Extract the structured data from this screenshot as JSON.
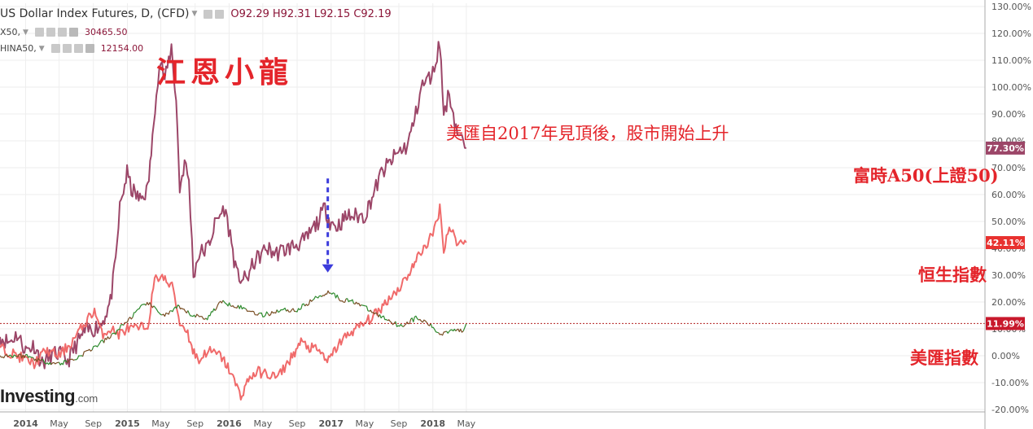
{
  "legend": {
    "main_title": "US Dollar Index Futures, D, (CFD)",
    "ohlc": [
      "O92.29",
      "H92.31",
      "L92.15",
      "C92.19"
    ],
    "s2_label": "X50,",
    "s2_value": "30465.50",
    "s3_label": "HINA50,",
    "s3_value": "12154.00"
  },
  "watermark": "江恩小龍",
  "annotations": {
    "top": "美匯自2017年見頂後，股市開始上升",
    "a50": "富時A50(上證50)",
    "hsi": "恒生指數",
    "usd": "美匯指數"
  },
  "logo": {
    "brand": "Investing",
    "suffix": ".com"
  },
  "colors": {
    "a50": "#9c4668",
    "hsi": "#f06a6a",
    "usd_up": "#2e8b2e",
    "usd_down": "#7a4f25",
    "annotation": "#e4252b",
    "arrow": "#3c3cdc",
    "ref_line": "#b22222"
  },
  "chart_data": {
    "type": "line",
    "x_tick_labels": [
      "2014",
      "May",
      "Sep",
      "2015",
      "May",
      "Sep",
      "2016",
      "May",
      "Sep",
      "2017",
      "May",
      "Sep",
      "2018",
      "May"
    ],
    "y_axis": {
      "ticks": [
        -20,
        -10,
        0,
        10,
        20,
        30,
        40,
        50,
        60,
        70,
        80,
        90,
        100,
        110,
        120,
        130
      ],
      "format": "percent",
      "range": [
        -22,
        132
      ]
    },
    "last_value_badges": [
      "77.30%",
      "42.11%",
      "11.99%"
    ],
    "series": [
      {
        "key": "a50",
        "points": [
          [
            "2013-10-01",
            7
          ],
          [
            "2013-11-01",
            5
          ],
          [
            "2013-12-01",
            8
          ],
          [
            "2014-01-01",
            2
          ],
          [
            "2014-02-01",
            4
          ],
          [
            "2014-03-01",
            -3
          ],
          [
            "2014-04-01",
            0
          ],
          [
            "2014-05-01",
            1
          ],
          [
            "2014-06-01",
            -2
          ],
          [
            "2014-07-01",
            4
          ],
          [
            "2014-08-01",
            9
          ],
          [
            "2014-09-01",
            10
          ],
          [
            "2014-10-01",
            12
          ],
          [
            "2014-11-01",
            20
          ],
          [
            "2014-11-20",
            35
          ],
          [
            "2014-12-05",
            55
          ],
          [
            "2014-12-31",
            68
          ],
          [
            "2015-01-15",
            62
          ],
          [
            "2015-02-15",
            58
          ],
          [
            "2015-03-15",
            62
          ],
          [
            "2015-04-01",
            80
          ],
          [
            "2015-04-15",
            100
          ],
          [
            "2015-05-01",
            110
          ],
          [
            "2015-05-15",
            102
          ],
          [
            "2015-06-08",
            115
          ],
          [
            "2015-06-25",
            95
          ],
          [
            "2015-07-08",
            62
          ],
          [
            "2015-07-25",
            72
          ],
          [
            "2015-08-10",
            65
          ],
          [
            "2015-08-26",
            30
          ],
          [
            "2015-09-15",
            38
          ],
          [
            "2015-10-15",
            40
          ],
          [
            "2015-11-15",
            50
          ],
          [
            "2015-12-15",
            55
          ],
          [
            "2016-01-05",
            45
          ],
          [
            "2016-01-28",
            30
          ],
          [
            "2016-03-01",
            28
          ],
          [
            "2016-04-01",
            35
          ],
          [
            "2016-05-15",
            40
          ],
          [
            "2016-06-15",
            38
          ],
          [
            "2016-08-01",
            40
          ],
          [
            "2016-10-01",
            43
          ],
          [
            "2016-11-15",
            50
          ],
          [
            "2016-12-10",
            55
          ],
          [
            "2016-12-28",
            50
          ],
          [
            "2017-01-20",
            48
          ],
          [
            "2017-03-01",
            52
          ],
          [
            "2017-05-01",
            52
          ],
          [
            "2017-06-01",
            60
          ],
          [
            "2017-07-01",
            68
          ],
          [
            "2017-08-01",
            72
          ],
          [
            "2017-09-01",
            76
          ],
          [
            "2017-10-01",
            78
          ],
          [
            "2017-11-01",
            90
          ],
          [
            "2017-11-20",
            100
          ],
          [
            "2018-01-01",
            105
          ],
          [
            "2018-01-26",
            117
          ],
          [
            "2018-02-09",
            90
          ],
          [
            "2018-03-01",
            98
          ],
          [
            "2018-03-25",
            85
          ],
          [
            "2018-04-15",
            80
          ],
          [
            "2018-05-01",
            77.3
          ]
        ]
      },
      {
        "key": "hsi",
        "points": [
          [
            "2013-10-01",
            3
          ],
          [
            "2013-12-01",
            0
          ],
          [
            "2014-02-01",
            -3
          ],
          [
            "2014-03-15",
            2
          ],
          [
            "2014-05-01",
            0
          ],
          [
            "2014-06-15",
            5
          ],
          [
            "2014-08-01",
            12
          ],
          [
            "2014-09-05",
            17
          ],
          [
            "2014-10-01",
            8
          ],
          [
            "2014-11-01",
            10
          ],
          [
            "2014-12-01",
            8
          ],
          [
            "2015-01-01",
            10
          ],
          [
            "2015-02-01",
            10
          ],
          [
            "2015-03-15",
            11
          ],
          [
            "2015-04-09",
            28
          ],
          [
            "2015-05-01",
            30
          ],
          [
            "2015-05-26",
            27
          ],
          [
            "2015-06-15",
            25
          ],
          [
            "2015-07-08",
            12
          ],
          [
            "2015-08-01",
            10
          ],
          [
            "2015-08-24",
            2
          ],
          [
            "2015-09-15",
            -2
          ],
          [
            "2015-10-15",
            2
          ],
          [
            "2015-12-01",
            0
          ],
          [
            "2016-01-01",
            -5
          ],
          [
            "2016-02-12",
            -15
          ],
          [
            "2016-03-15",
            -8
          ],
          [
            "2016-04-15",
            -6
          ],
          [
            "2016-06-24",
            -8
          ],
          [
            "2016-08-15",
            0
          ],
          [
            "2016-09-15",
            5
          ],
          [
            "2016-10-15",
            3
          ],
          [
            "2016-11-15",
            2
          ],
          [
            "2016-12-23",
            -2
          ],
          [
            "2017-02-01",
            5
          ],
          [
            "2017-03-15",
            9
          ],
          [
            "2017-05-01",
            12
          ],
          [
            "2017-06-15",
            16
          ],
          [
            "2017-08-01",
            22
          ],
          [
            "2017-09-01",
            25
          ],
          [
            "2017-10-15",
            32
          ],
          [
            "2017-11-15",
            38
          ],
          [
            "2018-01-01",
            45
          ],
          [
            "2018-01-26",
            55
          ],
          [
            "2018-02-09",
            40
          ],
          [
            "2018-03-01",
            48
          ],
          [
            "2018-04-01",
            42
          ],
          [
            "2018-05-01",
            42.11
          ]
        ]
      },
      {
        "key": "usd",
        "points": [
          [
            "2013-10-01",
            0
          ],
          [
            "2014-01-01",
            0
          ],
          [
            "2014-03-01",
            -2
          ],
          [
            "2014-05-01",
            -3
          ],
          [
            "2014-07-01",
            -1
          ],
          [
            "2014-09-01",
            3
          ],
          [
            "2014-11-01",
            7
          ],
          [
            "2015-01-01",
            13
          ],
          [
            "2015-03-13",
            20
          ],
          [
            "2015-04-01",
            18
          ],
          [
            "2015-05-15",
            15
          ],
          [
            "2015-07-01",
            18
          ],
          [
            "2015-08-24",
            15
          ],
          [
            "2015-10-15",
            14
          ],
          [
            "2015-12-01",
            20
          ],
          [
            "2016-01-15",
            19
          ],
          [
            "2016-05-01",
            15
          ],
          [
            "2016-06-30",
            17
          ],
          [
            "2016-09-01",
            17
          ],
          [
            "2016-11-15",
            22
          ],
          [
            "2016-12-30",
            24
          ],
          [
            "2017-02-01",
            21
          ],
          [
            "2017-04-01",
            20
          ],
          [
            "2017-06-01",
            16
          ],
          [
            "2017-08-01",
            13
          ],
          [
            "2017-09-08",
            11
          ],
          [
            "2017-11-01",
            14
          ],
          [
            "2017-12-15",
            12
          ],
          [
            "2018-01-26",
            8
          ],
          [
            "2018-03-15",
            10
          ],
          [
            "2018-04-15",
            9
          ],
          [
            "2018-05-01",
            11.99
          ]
        ]
      }
    ]
  }
}
